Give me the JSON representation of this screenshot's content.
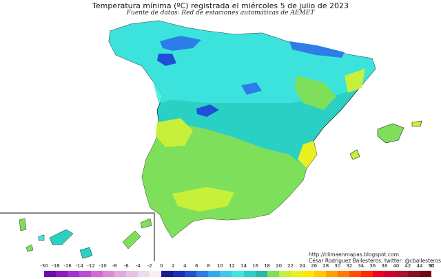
{
  "title": "Temperatura mínima (ºC) registrada el miércoles 5 de julio de 2023",
  "subtitle": "Fuente de datos: Red de estaciones automáticas de AEMET",
  "credit": {
    "line1": "http://climaenmapas.blogspot.com",
    "line2": "César Rodríguez Ballesteros, twitter: @cballesteros"
  },
  "legend": {
    "unit": "ºC",
    "ticks": [
      "-30",
      "-18",
      "-16",
      "-14",
      "-12",
      "-10",
      "-8",
      "-6",
      "-4",
      "-2",
      "0",
      "2",
      "4",
      "6",
      "8",
      "10",
      "12",
      "14",
      "16",
      "18",
      "20",
      "22",
      "24",
      "26",
      "28",
      "30",
      "32",
      "34",
      "36",
      "38",
      "40",
      "42",
      "44",
      "50"
    ],
    "colors": [
      "#6a0dad",
      "#8a1cc4",
      "#a531d4",
      "#c24ad8",
      "#d46ad6",
      "#dc8ad8",
      "#e3a8dc",
      "#e8c2e4",
      "#ecdcec",
      "#f4f0f4",
      "#1a1a8c",
      "#1e2fb8",
      "#2050d8",
      "#2d7de8",
      "#34a8ee",
      "#3cc8f0",
      "#3ee6e0",
      "#2bd0c4",
      "#29b8a8",
      "#7ee05a",
      "#c6f03a",
      "#e8f020",
      "#ffe600",
      "#ffc800",
      "#ffa000",
      "#ff7a00",
      "#ff5000",
      "#ff2800",
      "#f00020",
      "#d00030",
      "#b0102c",
      "#8c1020",
      "#6c0a14"
    ]
  },
  "map": {
    "region": "España peninsular, Baleares y Canarias",
    "predominant_colors": {
      "north": "#3ee6e0",
      "cantabrian_peaks": "#2050d8",
      "center": "#2bd0c4",
      "south": "#7ee05a",
      "east_coast": "#c6f03a"
    }
  }
}
